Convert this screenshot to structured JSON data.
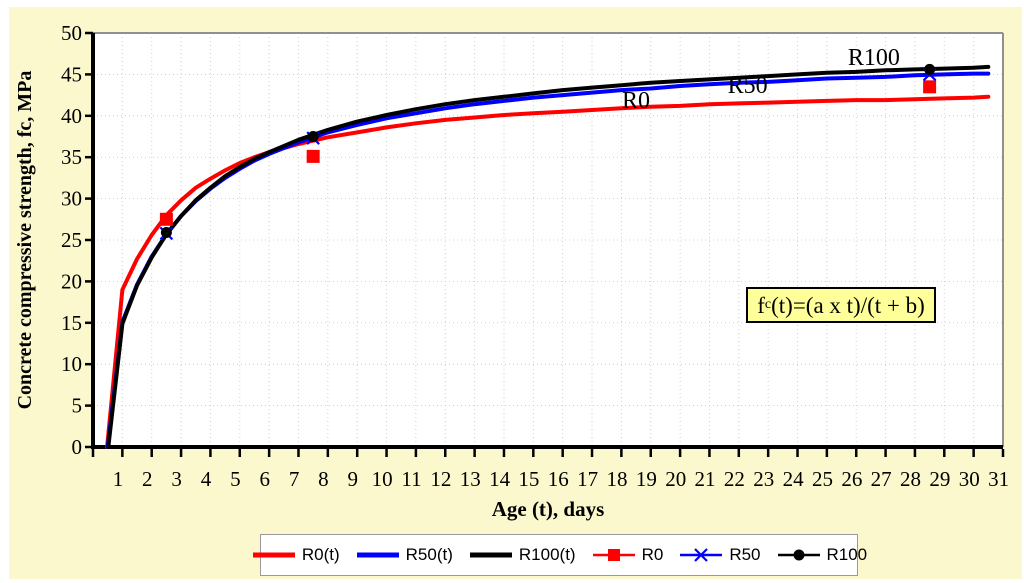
{
  "chart_data": {
    "type": "line",
    "title": "",
    "xlabel": "Age (t), days",
    "ylabel": "Concrete compressive strength, fc, MPa",
    "xlim": [
      0,
      31
    ],
    "ylim": [
      0,
      50
    ],
    "xticks": [
      1,
      2,
      3,
      4,
      5,
      6,
      7,
      8,
      9,
      10,
      11,
      12,
      13,
      14,
      15,
      16,
      17,
      18,
      19,
      20,
      21,
      22,
      23,
      24,
      25,
      26,
      27,
      28,
      29,
      30,
      31
    ],
    "yticks": [
      0,
      5,
      10,
      15,
      20,
      25,
      30,
      35,
      40,
      45,
      50
    ],
    "grid": "dotted light-gray, every 1 day vertical, every 5 MPa horizontal",
    "legend_position": "bottom",
    "series": [
      {
        "name": "R0(t)",
        "color": "#FF0000",
        "points": [
          [
            0.48,
            0
          ],
          [
            1,
            19.0
          ],
          [
            1.5,
            22.7
          ],
          [
            2,
            25.6
          ],
          [
            2.5,
            28.0
          ],
          [
            3,
            29.8
          ],
          [
            3.5,
            31.3
          ],
          [
            4,
            32.4
          ],
          [
            4.5,
            33.4
          ],
          [
            5,
            34.3
          ],
          [
            5.5,
            35.0
          ],
          [
            6,
            35.6
          ],
          [
            7,
            36.6
          ],
          [
            8,
            37.4
          ],
          [
            9,
            38.0
          ],
          [
            10,
            38.6
          ],
          [
            11,
            39.1
          ],
          [
            12,
            39.5
          ],
          [
            13,
            39.8
          ],
          [
            14,
            40.1
          ],
          [
            15,
            40.3
          ],
          [
            16,
            40.5
          ],
          [
            17,
            40.7
          ],
          [
            18,
            40.9
          ],
          [
            19,
            41.1
          ],
          [
            20,
            41.2
          ],
          [
            21,
            41.4
          ],
          [
            22,
            41.5
          ],
          [
            23,
            41.6
          ],
          [
            24,
            41.7
          ],
          [
            25,
            41.8
          ],
          [
            26,
            41.9
          ],
          [
            27,
            41.9
          ],
          [
            28,
            42.0
          ],
          [
            29,
            42.1
          ],
          [
            30,
            42.2
          ],
          [
            30.5,
            42.3
          ]
        ]
      },
      {
        "name": "R50(t)",
        "color": "#0000FF",
        "points": [
          [
            0.5,
            0
          ],
          [
            1,
            15.1
          ],
          [
            1.5,
            19.6
          ],
          [
            2,
            23.0
          ],
          [
            2.5,
            25.7
          ],
          [
            3,
            27.9
          ],
          [
            3.5,
            29.7
          ],
          [
            4,
            31.2
          ],
          [
            4.5,
            32.5
          ],
          [
            5,
            33.6
          ],
          [
            5.5,
            34.6
          ],
          [
            6,
            35.4
          ],
          [
            7,
            36.8
          ],
          [
            8,
            38.0
          ],
          [
            9,
            38.9
          ],
          [
            10,
            39.7
          ],
          [
            11,
            40.3
          ],
          [
            12,
            40.9
          ],
          [
            13,
            41.4
          ],
          [
            14,
            41.8
          ],
          [
            15,
            42.2
          ],
          [
            16,
            42.5
          ],
          [
            17,
            42.8
          ],
          [
            18,
            43.1
          ],
          [
            19,
            43.3
          ],
          [
            20,
            43.6
          ],
          [
            21,
            43.8
          ],
          [
            22,
            44.0
          ],
          [
            23,
            44.1
          ],
          [
            24,
            44.3
          ],
          [
            25,
            44.5
          ],
          [
            26,
            44.6
          ],
          [
            27,
            44.7
          ],
          [
            28,
            44.9
          ],
          [
            29,
            45.0
          ],
          [
            30,
            45.1
          ],
          [
            30.5,
            45.1
          ]
        ]
      },
      {
        "name": "R100(t)",
        "color": "#000000",
        "points": [
          [
            0.52,
            0
          ],
          [
            1,
            14.9
          ],
          [
            1.5,
            19.5
          ],
          [
            2,
            22.9
          ],
          [
            2.5,
            25.7
          ],
          [
            3,
            27.9
          ],
          [
            3.5,
            29.8
          ],
          [
            4,
            31.3
          ],
          [
            4.5,
            32.7
          ],
          [
            5,
            33.8
          ],
          [
            5.5,
            34.8
          ],
          [
            6,
            35.6
          ],
          [
            7,
            37.1
          ],
          [
            8,
            38.3
          ],
          [
            9,
            39.3
          ],
          [
            10,
            40.1
          ],
          [
            11,
            40.8
          ],
          [
            12,
            41.4
          ],
          [
            13,
            41.9
          ],
          [
            14,
            42.3
          ],
          [
            15,
            42.7
          ],
          [
            16,
            43.1
          ],
          [
            17,
            43.4
          ],
          [
            18,
            43.7
          ],
          [
            19,
            44.0
          ],
          [
            20,
            44.2
          ],
          [
            21,
            44.4
          ],
          [
            22,
            44.6
          ],
          [
            23,
            44.8
          ],
          [
            24,
            45.0
          ],
          [
            25,
            45.2
          ],
          [
            26,
            45.3
          ],
          [
            27,
            45.5
          ],
          [
            28,
            45.6
          ],
          [
            29,
            45.7
          ],
          [
            30,
            45.8
          ],
          [
            30.5,
            45.9
          ]
        ]
      }
    ],
    "scatter": [
      {
        "name": "R0",
        "color": "#FF0000",
        "marker": "square",
        "points": [
          [
            2.5,
            27.5
          ],
          [
            7.5,
            35.1
          ],
          [
            28.5,
            43.5
          ]
        ]
      },
      {
        "name": "R50",
        "color": "#0000FF",
        "marker": "x",
        "points": [
          [
            2.5,
            25.8
          ],
          [
            7.5,
            37.3
          ],
          [
            28.5,
            45.0
          ]
        ]
      },
      {
        "name": "R100",
        "color": "#000000",
        "marker": "circle",
        "points": [
          [
            2.5,
            25.9
          ],
          [
            7.5,
            37.5
          ],
          [
            28.5,
            45.6
          ]
        ]
      }
    ],
    "annotations": [
      {
        "label": "R0",
        "t": 18.5,
        "v": 41.9
      },
      {
        "label": "R50",
        "t": 22.3,
        "v": 43.7
      },
      {
        "label": "R100",
        "t": 26.6,
        "v": 47.1
      }
    ]
  },
  "formula": {
    "f": "f",
    "sub": "c",
    "rest": "(t)=(a x t)/(t + b)"
  },
  "legend": {
    "items": [
      {
        "label": "R0(t)",
        "color": "#FF0000",
        "swatch": "line"
      },
      {
        "label": "R50(t)",
        "color": "#0000FF",
        "swatch": "line"
      },
      {
        "label": "R100(t)",
        "color": "#000000",
        "swatch": "line"
      },
      {
        "label": "R0",
        "color": "#FF0000",
        "swatch": "line-square"
      },
      {
        "label": "R50",
        "color": "#0000FF",
        "swatch": "line-x"
      },
      {
        "label": "R100",
        "color": "#000000",
        "swatch": "line-circle"
      }
    ]
  },
  "colors": {
    "page_background": "#FFFFFF",
    "panel_background": "#FBF8CD",
    "plot_background": "#FFFFFF",
    "formula_background": "#FFFF99",
    "gridline": "#CFCFCF",
    "plot_border": "#909090",
    "axis": "#000000",
    "r0": "#FF0000",
    "r50": "#0000FF",
    "r100": "#000000"
  }
}
